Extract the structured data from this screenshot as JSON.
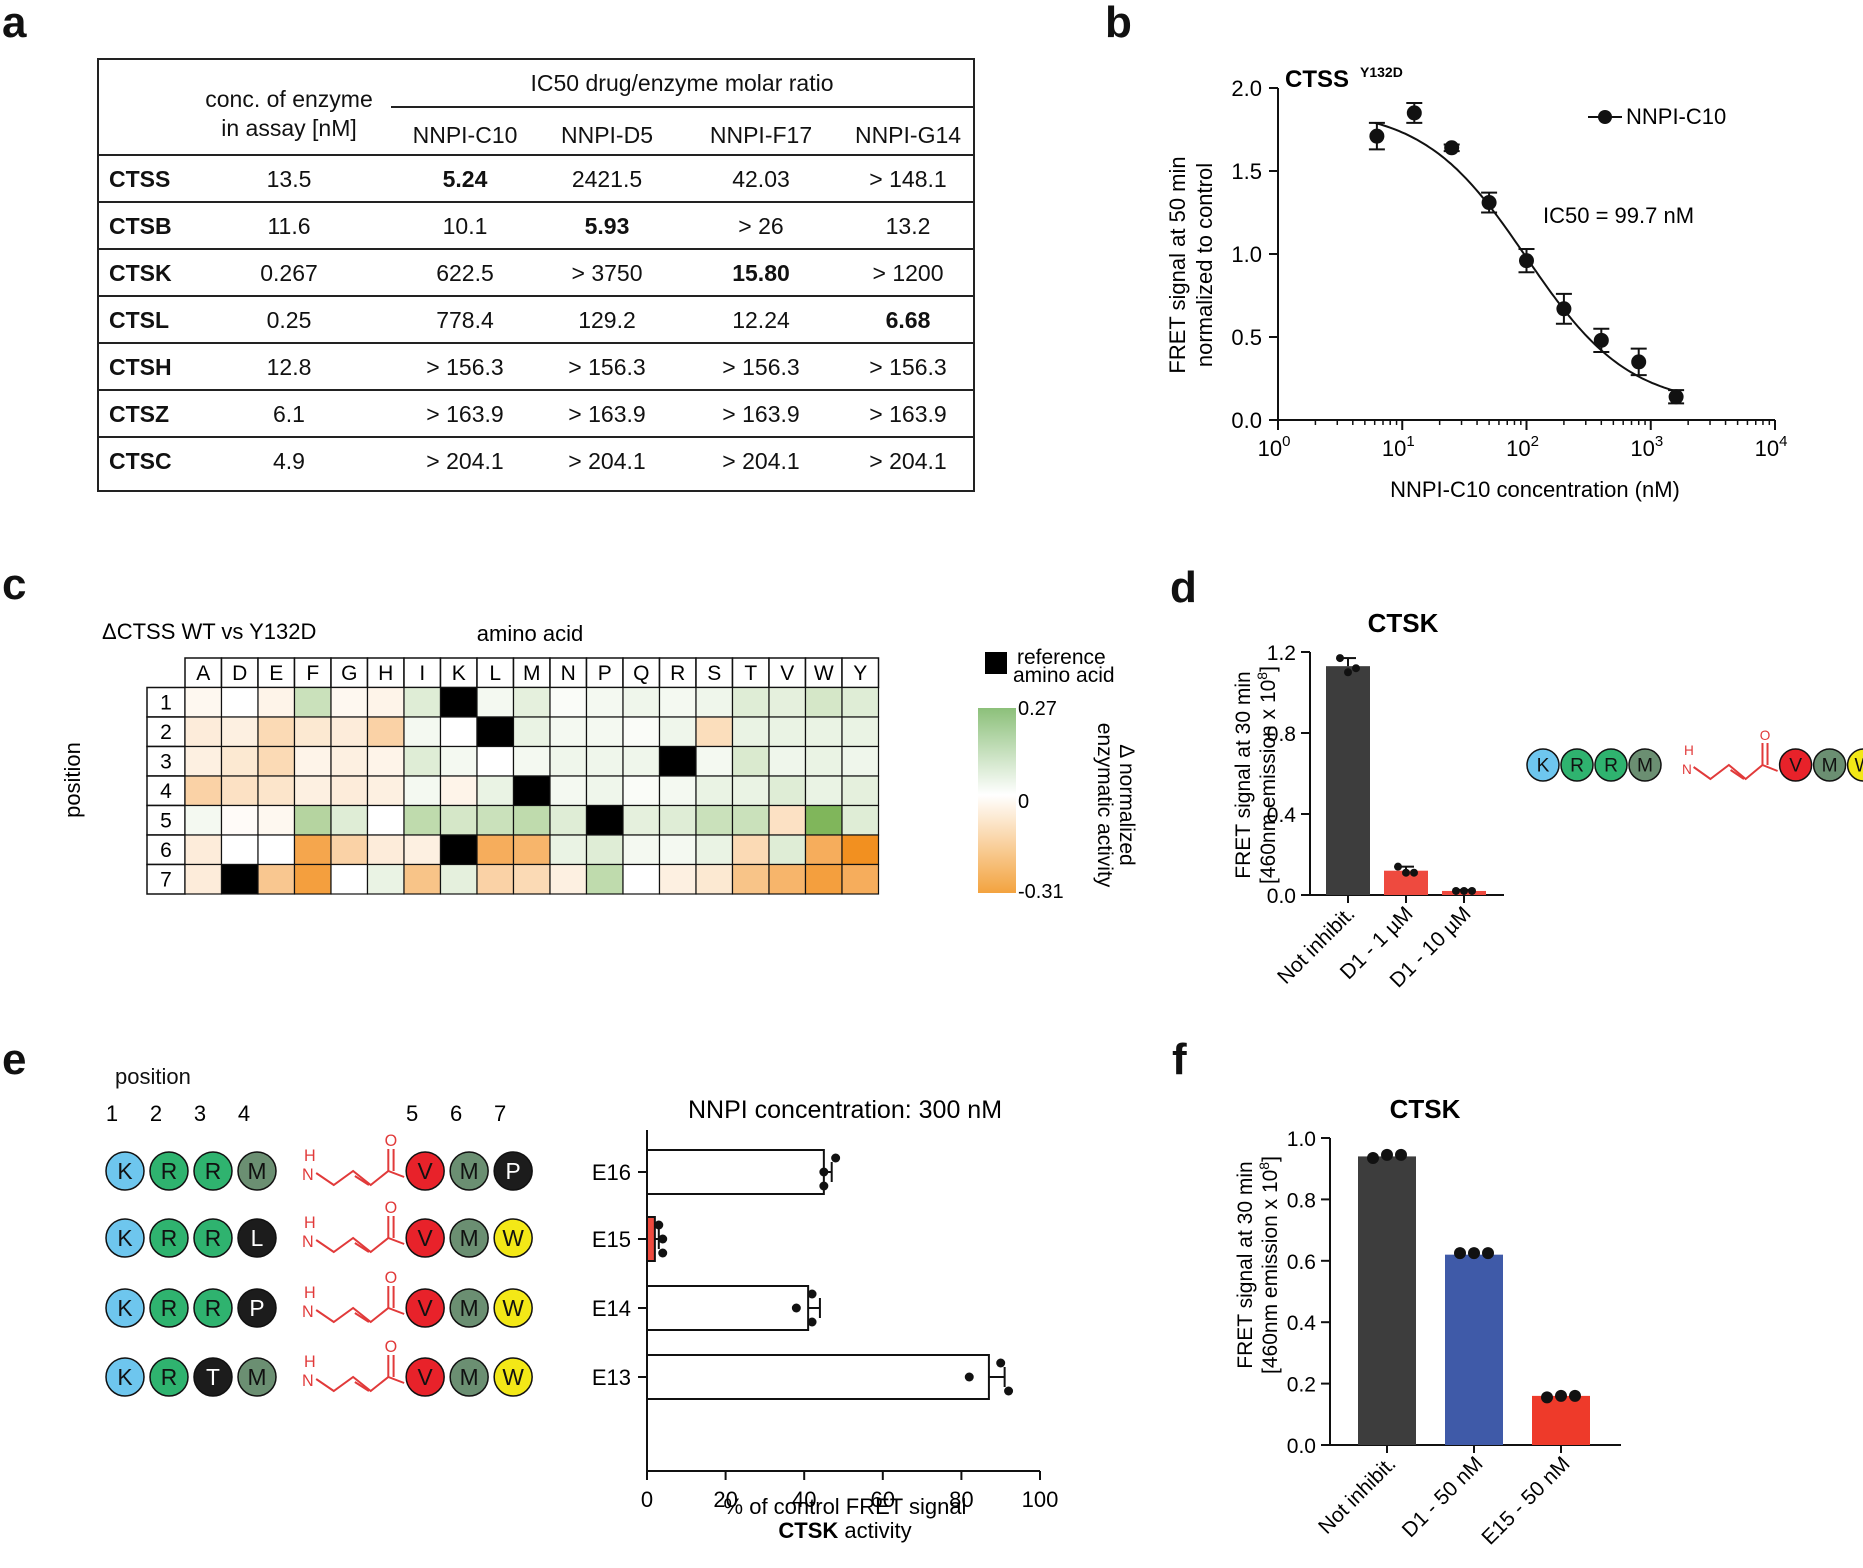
{
  "panel_labels": {
    "a": "a",
    "b": "b",
    "c": "c",
    "d": "d",
    "e": "e",
    "f": "f"
  },
  "table": {
    "col_enzyme": "conc. of enzyme in assay [nM]",
    "col_enzyme_l1": "conc. of enzyme",
    "col_enzyme_l2": "in assay [nM]",
    "group_header": "IC50 drug/enzyme molar ratio",
    "compounds": [
      "NNPI-C10",
      "NNPI-D5",
      "NNPI-F17",
      "NNPI-G14"
    ],
    "rows": [
      {
        "name": "CTSS",
        "conc": "13.5",
        "vals": [
          "5.24",
          "2421.5",
          "42.03",
          "> 148.1"
        ],
        "bold": 0
      },
      {
        "name": "CTSB",
        "conc": "11.6",
        "vals": [
          "10.1",
          "5.93",
          "> 26",
          "13.2"
        ],
        "bold": 1
      },
      {
        "name": "CTSK",
        "conc": "0.267",
        "vals": [
          "622.5",
          "> 3750",
          "15.80",
          "> 1200"
        ],
        "bold": 2
      },
      {
        "name": "CTSL",
        "conc": "0.25",
        "vals": [
          "778.4",
          "129.2",
          "12.24",
          "6.68"
        ],
        "bold": 3
      },
      {
        "name": "CTSH",
        "conc": "12.8",
        "vals": [
          "> 156.3",
          "> 156.3",
          "> 156.3",
          "> 156.3"
        ],
        "bold": -1
      },
      {
        "name": "CTSZ",
        "conc": "6.1",
        "vals": [
          "> 163.9",
          "> 163.9",
          "> 163.9",
          "> 163.9"
        ],
        "bold": -1
      },
      {
        "name": "CTSC",
        "conc": "4.9",
        "vals": [
          "> 204.1",
          "> 204.1",
          "> 204.1",
          "> 204.1"
        ],
        "bold": -1
      }
    ]
  },
  "chart_data": [
    {
      "id": "b",
      "type": "scatter",
      "title": "CTSS",
      "title_sup": "Y132D",
      "xlabel": "NNPI-C10 concentration (nM)",
      "ylabel_l1": "FRET signal at 50 min",
      "ylabel_l2": "normalized to control",
      "xscale": "log",
      "xlim": [
        1,
        10000
      ],
      "ylim": [
        0,
        2.0
      ],
      "yticks": [
        "0.0",
        "0.5",
        "1.0",
        "1.5",
        "2.0"
      ],
      "xtick_base": "10",
      "xtick_exp": [
        "0",
        "1",
        "2",
        "3",
        "4"
      ],
      "legend": "NNPI-C10",
      "annotation": "IC50 = 99.7 nM",
      "x": [
        6.25,
        12.5,
        25,
        50,
        100,
        200,
        400,
        800,
        1600
      ],
      "y": [
        1.71,
        1.85,
        1.64,
        1.31,
        0.96,
        0.67,
        0.48,
        0.35,
        0.14
      ],
      "err": [
        0.08,
        0.06,
        0.02,
        0.06,
        0.07,
        0.09,
        0.07,
        0.08,
        0.04
      ],
      "ic50": 99.7
    },
    {
      "id": "c",
      "type": "heatmap",
      "title": "ΔCTSS WT vs Y132D",
      "xlabel": "amino acid",
      "ylabel": "position",
      "columns": [
        "A",
        "D",
        "E",
        "F",
        "G",
        "H",
        "I",
        "K",
        "L",
        "M",
        "N",
        "P",
        "Q",
        "R",
        "S",
        "T",
        "V",
        "W",
        "Y"
      ],
      "rows": [
        "1",
        "2",
        "3",
        "4",
        "5",
        "6",
        "7"
      ],
      "reference": [
        [
          0,
          7
        ],
        [
          1,
          8
        ],
        [
          2,
          13
        ],
        [
          3,
          9
        ],
        [
          4,
          11
        ],
        [
          5,
          7
        ],
        [
          6,
          1
        ]
      ],
      "values": [
        [
          -0.02,
          0.0,
          -0.03,
          0.1,
          -0.02,
          -0.03,
          0.06,
          null,
          0.02,
          0.05,
          0.01,
          0.02,
          0.03,
          0.02,
          0.03,
          0.06,
          0.05,
          0.08,
          0.06
        ],
        [
          -0.05,
          -0.04,
          -0.1,
          -0.06,
          -0.05,
          -0.12,
          0.02,
          0.0,
          null,
          0.04,
          0.02,
          0.02,
          0.01,
          0.03,
          -0.09,
          0.04,
          0.04,
          0.04,
          0.04
        ],
        [
          -0.04,
          -0.06,
          -0.1,
          -0.03,
          -0.04,
          -0.03,
          0.06,
          0.02,
          0.0,
          0.02,
          0.03,
          0.03,
          0.03,
          null,
          0.02,
          0.07,
          0.03,
          0.04,
          0.03
        ],
        [
          -0.12,
          -0.08,
          -0.07,
          -0.04,
          -0.05,
          -0.04,
          0.02,
          -0.03,
          0.04,
          null,
          0.02,
          0.03,
          0.01,
          0.02,
          0.04,
          0.04,
          0.06,
          0.04,
          0.05
        ],
        [
          0.02,
          -0.01,
          -0.02,
          0.14,
          0.06,
          0.0,
          0.12,
          0.08,
          0.1,
          0.12,
          0.06,
          null,
          0.05,
          0.06,
          0.1,
          0.1,
          -0.08,
          0.24,
          0.06
        ],
        [
          -0.05,
          0.0,
          0.0,
          -0.24,
          -0.12,
          -0.05,
          -0.04,
          null,
          -0.22,
          -0.2,
          0.04,
          0.06,
          0.02,
          0.02,
          0.04,
          -0.1,
          0.06,
          -0.22,
          -0.3
        ],
        [
          -0.05,
          null,
          -0.15,
          -0.26,
          0.0,
          0.04,
          -0.16,
          0.05,
          -0.12,
          -0.1,
          -0.04,
          0.12,
          0.0,
          -0.04,
          -0.06,
          -0.16,
          -0.2,
          -0.26,
          -0.22
        ]
      ],
      "legend_ref": "reference amino acid",
      "legend_ref_l1": "reference",
      "legend_ref_l2": "amino acid",
      "colorbar_label": "Δ normalized enzymatic activity",
      "colorbar_l1": "Δ normalized",
      "colorbar_l2": "enzymatic activity",
      "colorbar_max": "0.27",
      "colorbar_mid": "0",
      "colorbar_min": "-0.31",
      "range": [
        -0.31,
        0.27
      ]
    },
    {
      "id": "d",
      "type": "bar",
      "title": "CTSK",
      "ylabel_l1": "FRET signal at 30 min",
      "ylabel_l2": "[460nm emission x 10",
      "ylabel_sup": "8",
      "ylim": [
        0,
        1.2
      ],
      "yticks": [
        "0.0",
        "0.4",
        "0.8",
        "1.2"
      ],
      "categories": [
        "Not inhibit.",
        "D1 - 1 µM",
        "D1 - 10 µM"
      ],
      "values": [
        1.13,
        0.12,
        0.02
      ],
      "err": [
        0.04,
        0.02,
        0.005
      ],
      "points": [
        [
          1.17,
          1.1,
          1.12
        ],
        [
          0.14,
          0.11,
          0.11
        ],
        [
          0.02,
          0.02,
          0.02
        ]
      ],
      "colors": [
        "#3d3d3d",
        "#ee4a3f",
        "#ee4a3f"
      ]
    },
    {
      "id": "e",
      "type": "bar",
      "title": "NNPI concentration: 300 nM",
      "orientation": "horizontal",
      "categories": [
        "E16",
        "E15",
        "E14",
        "E13"
      ],
      "values": [
        45,
        2,
        41,
        87
      ],
      "err": [
        2,
        1,
        3,
        4
      ],
      "points": [
        [
          48,
          45,
          45
        ],
        [
          3,
          4,
          4
        ],
        [
          42,
          38,
          42
        ],
        [
          90,
          82,
          92
        ]
      ],
      "colors": [
        "#ffffff",
        "#ee4a3f",
        "#ffffff",
        "#ffffff"
      ],
      "xlim": [
        0,
        100
      ],
      "xticks": [
        "0",
        "20",
        "40",
        "60",
        "80",
        "100"
      ],
      "xlabel": "% of control FRET signal",
      "xlabel2": "CTSK",
      "xlabel3": " activity"
    },
    {
      "id": "f",
      "type": "bar",
      "title": "CTSK",
      "ylabel_l1": "FRET signal at 30 min",
      "ylabel_l2": "[460nm emission x 10",
      "ylabel_sup": "8",
      "ylim": [
        0,
        1.0
      ],
      "yticks": [
        "0.0",
        "0.2",
        "0.4",
        "0.6",
        "0.8",
        "1.0"
      ],
      "categories": [
        "Not inhibit.",
        "D1 - 50 nM",
        "E15 - 50 nM"
      ],
      "values": [
        0.94,
        0.62,
        0.16
      ],
      "points": [
        [
          0.935,
          0.945,
          0.945
        ],
        [
          0.625,
          0.625,
          0.625
        ],
        [
          0.155,
          0.16,
          0.16
        ]
      ],
      "colors": [
        "#3d3d3d",
        "#3f5aa8",
        "#ee3a2a"
      ]
    }
  ],
  "molecules": {
    "position_label": "position",
    "position_numbers": [
      "1",
      "2",
      "3",
      "4",
      "5",
      "6",
      "7"
    ],
    "linker_h": "H",
    "linker_n": "N",
    "linker_o": "O",
    "d_molecule": [
      "K",
      "R",
      "R",
      "M",
      "V",
      "M",
      "W"
    ],
    "e_molecules": [
      [
        "K",
        "R",
        "R",
        "M",
        "V",
        "M",
        "P"
      ],
      [
        "K",
        "R",
        "R",
        "L",
        "V",
        "M",
        "W"
      ],
      [
        "K",
        "R",
        "R",
        "P",
        "V",
        "M",
        "W"
      ],
      [
        "K",
        "R",
        "T",
        "M",
        "V",
        "M",
        "W"
      ]
    ],
    "colors": {
      "K": "#6ec6ee",
      "R": "#2fb36f",
      "M": "#6b8f72",
      "T": "#1c1c1c",
      "L": "#1c1c1c",
      "P": "#1c1c1c",
      "V": "#e8222a",
      "W": "#f3e817"
    },
    "linker_color": "#e13a3a"
  }
}
